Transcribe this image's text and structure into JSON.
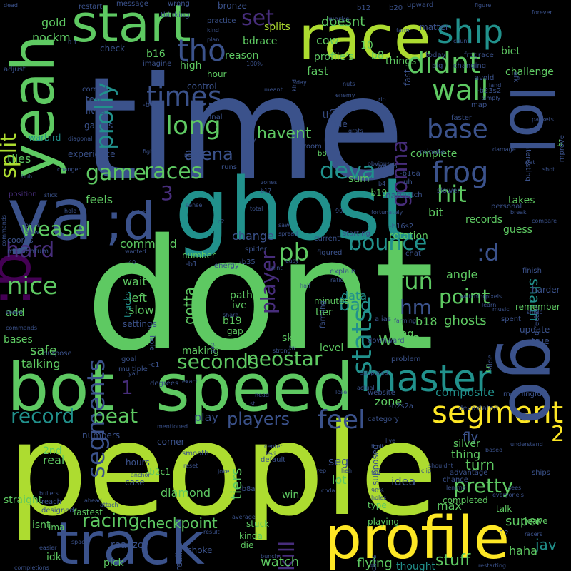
{
  "palette": {
    "background": "#000000",
    "navy": "#3b528b",
    "teal": "#21918c",
    "green": "#5ec962",
    "lime": "#addc30",
    "yellow": "#fde725",
    "purple": "#440154",
    "indigo": "#472d7b",
    "blue": "#31688e"
  },
  "words": {
    "time": "time",
    "dont": "dont",
    "people": "people",
    "ghost": "ghost",
    "yeah": "yeah",
    "race": "race",
    "start": "start",
    "ya": "ya",
    "d_colon": ";d",
    "p_colon": ":p",
    "bot": "bot",
    "speed": "speed",
    "track": "track",
    "profile": "profile",
    "lol": "lol",
    "go": "go",
    "master": "master",
    "segment": "segment",
    "segments": "segments",
    "ship": "ship",
    "tho": "tho",
    "didnt": "didnt",
    "set": "set",
    "prolly": "prolly",
    "times": "times",
    "wall": "wall",
    "long": "long",
    "base": "base",
    "frog": "frog",
    "hit": "hit",
    "game": "game",
    "races": "races",
    "deva": "deva",
    "gonna": "gonna",
    "three": "3",
    "split": "split",
    "weasel": "weasel",
    "arena": "arena",
    "havent": "havent",
    "player": "player",
    "pb": "pb",
    "bounce": "bounce",
    "hard": "hard",
    "nice": "nice",
    "fun": "fun",
    "hm": "hm",
    "colon_d": ":d",
    "point": "point",
    "bad": "bad",
    "warp": "warp",
    "stats": "stats",
    "neostar": "neostar",
    "seconds": "seconds",
    "record": "record",
    "beat": "beat",
    "players": "players",
    "feel": "feel",
    "pretty": "pretty",
    "racing": "racing",
    "checkpoint": "checkpoint",
    "kill": "kill",
    "watch": "watch",
    "stuff": "stuff",
    "flying": "flying",
    "thought": "thought",
    "jav": "jav",
    "haha": "haha",
    "super": "super",
    "two": "2",
    "one": "1",
    "safe": "safe",
    "talking": "talking",
    "command": "command",
    "change": "change",
    "feels": "feels",
    "tracks": "tracks",
    "left": "left",
    "slow": "slow",
    "wait": "wait",
    "gotta": "gotta",
    "data": "data",
    "ghosts": "ghosts",
    "angle": "angle",
    "shaun": "shaun",
    "composite": "composite",
    "zone": "zone",
    "fly": "fly",
    "turn": "turn",
    "tiers": "tiers",
    "idea": "idea",
    "lot": "lot",
    "seg": "seg",
    "thing": "thing",
    "max": "max",
    "diamond": "diamond",
    "real": "real",
    "second_nd": "2nd",
    "play": "play",
    "making": "making",
    "level": "level",
    "gold": "gold",
    "nockm": "nockm",
    "doesnt": "doesnt",
    "bdrace": "bdrace",
    "splits": "splits",
    "biet": "biet",
    "matter": "matter",
    "challenge": "challenge",
    "map": "map",
    "b16": "b16",
    "b8": "b8",
    "reason": "reason",
    "high": "high",
    "hour": "hour",
    "cow": "cow",
    "ten": "10",
    "profiles": "profile's",
    "things": "things",
    "fast": "fast",
    "thx": "thx",
    "tile": "tile",
    "b18": "b18",
    "lag": "lag",
    "tier": "tier",
    "bit": "bit",
    "guess": "guess",
    "records": "records",
    "rotation": "rotation",
    "bases": "bases",
    "add": "add",
    "momentum": "momentum",
    "settings": "settings",
    "tiles": "tiles",
    "ive": "ive",
    "path": "path",
    "b19": "b19",
    "skill": "skill",
    "gap": "gap",
    "yeah_dot": "yeah.",
    "straight": "straight",
    "isnt": "isnt",
    "ima": "ima",
    "idk": "idk",
    "pick": "pick",
    "realize": "realize",
    "choke": "choke",
    "fastest": "fastest",
    "case": "case",
    "hours": "hours",
    "corner": "corner",
    "numbers": "numbers",
    "stuck": "stuck",
    "kinda": "kinda",
    "die": "die",
    "win": "win",
    "playing": "playing",
    "type": "type",
    "completed": "completed",
    "talk": "talk",
    "leave": "leave",
    "silver": "silver",
    "minutes": "minutes",
    "sum": "sum",
    "complete": "complete",
    "takes": "takes",
    "personal": "personal",
    "rest": "rest",
    "warbird": "warbird",
    "test": "test",
    "control": "control",
    "check": "check",
    "lives": "lives",
    "games": "games",
    "experience": "experience",
    "position": "position",
    "coords": "coords",
    "bronze": "bronze",
    "practice": "practice",
    "b20": "b20",
    "b12": "b12",
    "upward": "upward",
    "hey": "hey",
    "room": "room",
    "fine": "fine",
    "chat": "chat",
    "energy": "energy",
    "spider": "spider",
    "number": "number",
    "explain": "explain",
    "current": "current",
    "starting": "starting",
    "match": "match",
    "works": "works",
    "faster": "faster",
    "minute": "minute",
    "worth": "worth",
    "slower": "slower",
    "figured": "figured",
    "enemy": "enemy",
    "nah": "nah",
    "learn": "learn",
    "watching": "watching",
    "finish": "finish",
    "harder": "harder",
    "remember": "remember",
    "update": "update",
    "true": "true",
    "spent": "spent",
    "slide": "slide",
    "five": "5",
    "meaningful": "meaningful",
    "website": "website",
    "category": "category",
    "actual": "actual",
    "problem": "problem",
    "downward": "downward",
    "alias": "alias",
    "supposed": "supposed",
    "limit": "limit",
    "shouldnt": "shouldnt",
    "clip": "clip",
    "chance": "chance",
    "advantage": "advantage",
    "lemme": "lemme",
    "racers": "racers",
    "ships": "ships",
    "based": "based",
    "understand": "understand",
    "sees": "sees",
    "purpose": "purpose",
    "goal": "goal",
    "multiple": "multiple",
    "degrees": "degrees",
    "exact": "exact",
    "mentioned": "mentioned",
    "smooth": "smooth",
    "default": "default",
    "center": "center",
    "levi": "levi",
    "reset": "reset",
    "anchor": "anchor",
    "joke": "joke",
    "bullets": "bullets",
    "reach": "reach",
    "designed": "designed",
    "attach": "attach",
    "ahead": "ahead",
    "space": "space",
    "easier": "easier",
    "completions": "completions",
    "clips": "clips",
    "bunch": "bunch",
    "result": "result",
    "average": "average",
    "holes": "holes",
    "everyones": "everyone's",
    "restarting": "restarting",
    "dead": "dead",
    "restart": "restart",
    "message": "message",
    "wrong": "wrong",
    "kind": "kind",
    "plan": "plan",
    "thinking": "thinking",
    "imagine": "imagine",
    "adjust": "adjust",
    "correct": "correct",
    "fight": "fight",
    "diagonal": "diagonal",
    "nuts": "nuts",
    "day": "day",
    "today": "today",
    "count": "count",
    "big": "big",
    "changing": "changing",
    "frograce": "frograce",
    "avoid": "avoid",
    "land": "land",
    "interesting": "interesting",
    "afk": "afk",
    "packets": "packets",
    "damage": "damage",
    "improve": "improve",
    "break": "break",
    "compare": "compare",
    "pixels": "pixels",
    "shrap": "shrap",
    "music": "music",
    "direction": "direction",
    "uh": "uh",
    "obvious": "obvious",
    "fortunately": "fortunately",
    "devastated": "devastated",
    "zones": "zones",
    "runs": "runs",
    "total": "total",
    "sense": "sense",
    "hole": "hole",
    "bricks": "bricks",
    "wanted": "wanted",
    "stick": "stick",
    "changed": "changed",
    "notice": "notice",
    "final": "final",
    "one_s": "one's",
    "draw": "draw",
    "spread": "spread",
    "easy": "easy",
    "seeya": "seeya",
    "commands": "commands",
    "tw": "tw",
    "strong": "strong",
    "yall": "yall",
    "fair": "fair",
    "lose": "lose",
    "head": "head",
    "half": "half",
    "rep": "rep",
    "heh": "heh",
    "cnda": "cnda",
    "ninety_pct": "90%",
    "hundred_pct": "100%",
    "zero_one": "0.1",
    "meant": "meant",
    "farming": "farming",
    "share": "share",
    "hint": "hint",
    "saw": "saw",
    "lives_b": "live",
    "ratio": "ratio",
    "rip": "rip",
    "farm": "farm",
    "simply": "simply",
    "figure": "figure",
    "forever": "forever",
    "twelve": "12",
    "wat": "wat",
    "shot": "shot",
    "b23s2": "-b23s2",
    "b4c1": "-b4c1",
    "s_tag": "-s",
    "b16a": "-b16a",
    "b19t": "-b19",
    "b16s2": "-b16s2",
    "b35": "-b35",
    "b1": "-b1",
    "c1": "-c1",
    "b2c1": "-b2c1",
    "b8a": "-b8a",
    "b2s2a": "-b2s2a",
    "b8t": "b8",
    "forty": "40",
    "ninety": "90",
    "b17": "b17",
    "b4": "b4",
    "huh": "huh",
    "ggs": "ggs",
    "grats": "grats",
    "stl": "stl",
    "c2": "c2"
  }
}
